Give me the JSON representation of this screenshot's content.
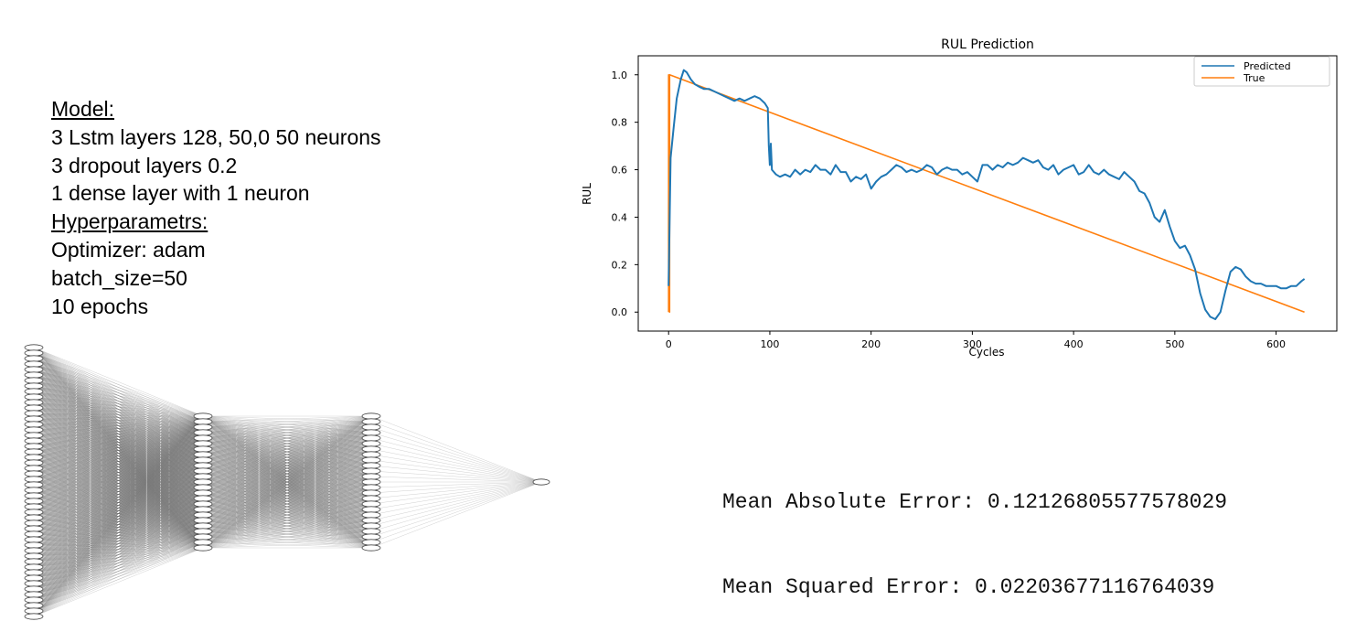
{
  "model_info": {
    "model_heading": "Model:",
    "layer_lines": [
      "3 Lstm layers 128, 50,0 50 neurons",
      "3 dropout layers 0.2",
      "1 dense layer with 1 neuron"
    ],
    "hyper_heading": "Hyperparametrs:",
    "hyper_lines": [
      "Optimizer: adam",
      "batch_size=50",
      "10 epochs"
    ]
  },
  "network_diagram": {
    "layer_neuron_counts": [
      50,
      25,
      25,
      1
    ]
  },
  "metrics": {
    "mae": "Mean Absolute Error: 0.12126805577578029",
    "mse": "Mean Squared Error: 0.02203677116764039"
  },
  "chart_data": {
    "type": "line",
    "title": "RUL Prediction",
    "xlabel": "Cycles",
    "ylabel": "RUL",
    "xlim": [
      -30,
      660
    ],
    "ylim": [
      -0.08,
      1.08
    ],
    "xticks": [
      0,
      100,
      200,
      300,
      400,
      500,
      600
    ],
    "yticks": [
      0.0,
      0.2,
      0.4,
      0.6,
      0.8,
      1.0
    ],
    "ytick_labels": [
      "0.0",
      "0.2",
      "0.4",
      "0.6",
      "0.8",
      "1.0"
    ],
    "grid": false,
    "legend_position": "top-right",
    "series": [
      {
        "name": "Predicted",
        "color": "#1f77b4",
        "x": [
          0,
          2,
          5,
          8,
          12,
          15,
          18,
          22,
          26,
          30,
          35,
          40,
          45,
          50,
          55,
          60,
          65,
          70,
          75,
          80,
          85,
          90,
          95,
          98,
          99,
          100,
          101,
          102,
          104,
          106,
          110,
          115,
          120,
          125,
          130,
          135,
          140,
          145,
          150,
          155,
          160,
          165,
          170,
          175,
          180,
          185,
          190,
          195,
          200,
          205,
          210,
          215,
          220,
          225,
          230,
          235,
          240,
          245,
          250,
          255,
          260,
          265,
          270,
          275,
          280,
          285,
          290,
          295,
          300,
          305,
          310,
          315,
          320,
          325,
          330,
          335,
          340,
          345,
          350,
          355,
          360,
          365,
          370,
          375,
          380,
          385,
          390,
          395,
          400,
          405,
          410,
          415,
          420,
          425,
          430,
          435,
          440,
          445,
          450,
          455,
          460,
          465,
          470,
          475,
          480,
          485,
          490,
          495,
          500,
          505,
          510,
          515,
          520,
          525,
          530,
          535,
          540,
          545,
          550,
          555,
          560,
          565,
          570,
          575,
          580,
          585,
          590,
          595,
          600,
          605,
          610,
          615,
          620,
          625,
          628
        ],
        "y": [
          0.11,
          0.65,
          0.78,
          0.9,
          0.98,
          1.02,
          1.01,
          0.98,
          0.96,
          0.95,
          0.94,
          0.94,
          0.93,
          0.92,
          0.91,
          0.9,
          0.89,
          0.9,
          0.89,
          0.9,
          0.91,
          0.9,
          0.88,
          0.86,
          0.7,
          0.62,
          0.71,
          0.6,
          0.59,
          0.58,
          0.57,
          0.58,
          0.57,
          0.6,
          0.58,
          0.6,
          0.59,
          0.62,
          0.6,
          0.6,
          0.58,
          0.62,
          0.59,
          0.59,
          0.55,
          0.57,
          0.56,
          0.58,
          0.52,
          0.55,
          0.57,
          0.58,
          0.6,
          0.62,
          0.61,
          0.59,
          0.6,
          0.59,
          0.6,
          0.62,
          0.61,
          0.58,
          0.6,
          0.61,
          0.6,
          0.6,
          0.58,
          0.59,
          0.57,
          0.55,
          0.62,
          0.62,
          0.6,
          0.62,
          0.61,
          0.63,
          0.62,
          0.63,
          0.65,
          0.64,
          0.63,
          0.64,
          0.61,
          0.6,
          0.62,
          0.58,
          0.6,
          0.61,
          0.62,
          0.58,
          0.59,
          0.62,
          0.59,
          0.58,
          0.6,
          0.58,
          0.57,
          0.56,
          0.59,
          0.57,
          0.55,
          0.51,
          0.5,
          0.46,
          0.4,
          0.38,
          0.43,
          0.36,
          0.3,
          0.27,
          0.28,
          0.24,
          0.18,
          0.08,
          0.01,
          -0.02,
          -0.03,
          0.0,
          0.09,
          0.17,
          0.19,
          0.18,
          0.15,
          0.13,
          0.12,
          0.12,
          0.11,
          0.11,
          0.11,
          0.1,
          0.1,
          0.11,
          0.11,
          0.13,
          0.14
        ]
      },
      {
        "name": "True",
        "color": "#ff7f0e",
        "x": [
          0,
          0,
          1,
          1,
          1,
          628
        ],
        "y": [
          0.0,
          1.0,
          0.0,
          0.0,
          1.0,
          0.0
        ]
      }
    ]
  }
}
